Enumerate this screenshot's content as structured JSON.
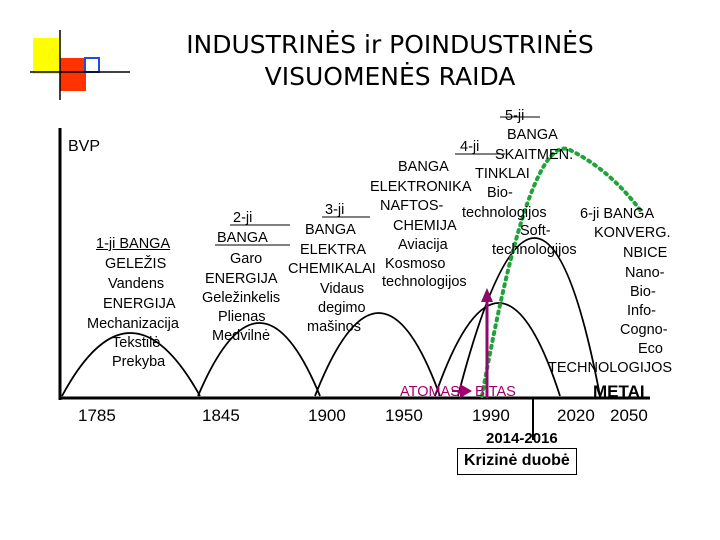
{
  "title": {
    "line1": "INDUSTRINĖS ir POINDUSTRINĖS",
    "line2": "VISUOMENĖS RAIDA"
  },
  "axis": {
    "y_label": "BVP",
    "x_label": "METAI",
    "years": [
      "1785",
      "1845",
      "1900",
      "1950",
      "1990",
      "2020",
      "2050"
    ]
  },
  "waves": [
    {
      "name": "1-ji BANGA",
      "items": [
        "GELEŽIS",
        "Vandens",
        "ENERGIJA",
        "Mechanizacija",
        "Tekstilė",
        "Prekyba"
      ]
    },
    {
      "name_line1": "2-ji",
      "name_line2": "BANGA",
      "items": [
        "Garo",
        "ENERGIJA",
        "Geležinkelis",
        "Plienas",
        "Medvilnė"
      ]
    },
    {
      "name_line1": "3-ji",
      "name_line2": "BANGA",
      "items": [
        "ELEKTRA",
        "CHEMIKALAI",
        "Vidaus",
        "degimo",
        "mašinos"
      ]
    },
    {
      "name_line1": "4-ji",
      "name_line2": "BANGA",
      "items": [
        "ELEKTRONIKA",
        "NAFTOS-",
        "CHEMIJA",
        "Aviacija",
        "Kosmoso",
        "technologijos"
      ]
    },
    {
      "name_line1": "5-ji",
      "name_line2": "BANGA",
      "items": [
        "SKAITMEN.",
        "TINKLAI",
        "Bio-",
        "technologijos",
        "Soft-",
        "technologijos"
      ]
    },
    {
      "name_line1": "6-ji BANGA",
      "name_line2": "KONVERG.",
      "items": [
        "NBICE",
        "Nano-",
        "Bio-",
        "Info-",
        "Cogno-",
        "Eco",
        "TECHNOLOGIJOS"
      ]
    }
  ],
  "transition": {
    "from": "ATOMAS",
    "to": "BITAS"
  },
  "crisis": {
    "period": "2014-2016",
    "label": "Krizinė duobė"
  },
  "colors": {
    "wave_curves": "#000000",
    "sixth_wave_dots": "#1fa33a",
    "transition_text": "#a0006e",
    "marker_line": "#8b0a6a",
    "decor_yellow": "#ffff00",
    "decor_red": "#ff3300",
    "decor_blue": "#1e4fd6"
  }
}
